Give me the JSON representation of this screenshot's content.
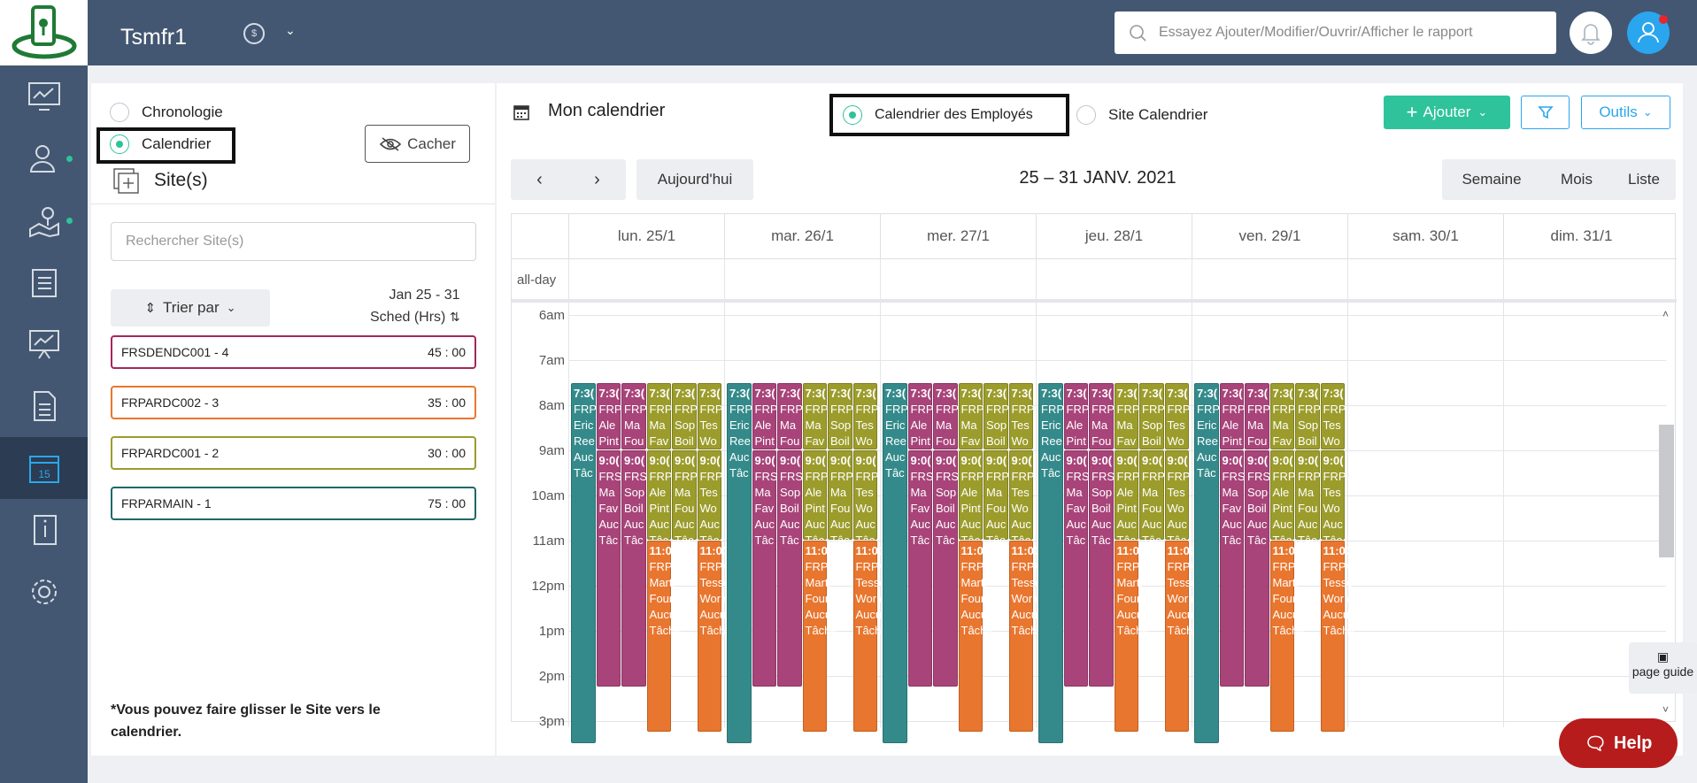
{
  "app": {
    "brand": "Tsmfr1",
    "search_placeholder": "Essayez Ajouter/Modifier/Ouvrir/Afficher le rapport"
  },
  "left": {
    "view_options": [
      "Chronologie",
      "Calendrier"
    ],
    "selected_view": "Calendrier",
    "hide_label": "Cacher",
    "sites_title": "Site(s)",
    "site_search_placeholder": "Rechercher Site(s)",
    "sort_label": "Trier par",
    "week_range": "Jan 25 - 31",
    "sched_label": "Sched (Hrs)",
    "sites": [
      {
        "name": "FRSDENDC001 - 4",
        "hours": "45 : 00",
        "color": "#a3275d"
      },
      {
        "name": "FRPARDC002 - 3",
        "hours": "35 : 00",
        "color": "#e9762e"
      },
      {
        "name": "FRPARDC001 - 2",
        "hours": "30 : 00",
        "color": "#9c9c2c"
      },
      {
        "name": "FRPARMAIN - 1",
        "hours": "75 : 00",
        "color": "#20686a"
      }
    ],
    "drag_note": "*Vous pouvez faire glisser le Site vers le calendrier."
  },
  "calendar": {
    "title": "Mon calendrier",
    "employee_cal": "Calendrier des Employés",
    "site_cal": "Site Calendrier",
    "add_label": "Ajouter",
    "tools_label": "Outils",
    "today_label": "Aujourd'hui",
    "range": "25 – 31 JANV. 2021",
    "views": [
      "Semaine",
      "Mois",
      "Liste"
    ],
    "allday_label": "all-day",
    "days": [
      "lun. 25/1",
      "mar. 26/1",
      "mer. 27/1",
      "jeu. 28/1",
      "ven. 29/1",
      "sam. 30/1",
      "dim. 31/1"
    ],
    "hours": [
      "6am",
      "7am",
      "8am",
      "9am",
      "10am",
      "11am",
      "12pm",
      "1pm",
      "2pm",
      "3pm"
    ],
    "event_columns": [
      {
        "color": "#348a8a",
        "start": 7.5,
        "end": 15.5,
        "lines": [
          "7:3(",
          "FRP",
          "Eric",
          "Ree",
          "Auc",
          "Tâc"
        ]
      },
      {
        "color": "#a8447a",
        "start": 7.5,
        "end": 9.0,
        "lines": [
          "7:3(",
          "FRP",
          "Ale",
          "Pint"
        ],
        "then": {
          "color": "#a8447a",
          "start": 9.0,
          "end": 14.25,
          "lines": [
            "9:0(",
            "FRS",
            "Ma",
            "Fav",
            "Auc",
            "Tâc"
          ]
        }
      },
      {
        "color": "#a8447a",
        "start": 7.5,
        "end": 9.0,
        "lines": [
          "7:3(",
          "FRP",
          "Ma",
          "Fou"
        ],
        "then": {
          "color": "#a8447a",
          "start": 9.0,
          "end": 14.25,
          "lines": [
            "9:0(",
            "FRS",
            "Sop",
            "Boil",
            "Auc",
            "Tâc"
          ]
        }
      },
      {
        "color": "#9c9c2c",
        "start": 7.5,
        "end": 9.0,
        "lines": [
          "7:3(",
          "FRP",
          "Ma",
          "Fav"
        ],
        "then": {
          "color": "#9c9c2c",
          "start": 9.0,
          "end": 11.0,
          "lines": [
            "9:0(",
            "FRP",
            "Ale",
            "Pint",
            "Auc",
            "Tâc"
          ]
        },
        "then2": {
          "color": "#e9762e",
          "start": 11.0,
          "end": 15.25,
          "lines": [
            "11:00",
            "FRPAI",
            "Marti",
            "Fourc",
            "Aucu",
            "Tâche"
          ]
        }
      },
      {
        "color": "#9c9c2c",
        "start": 7.5,
        "end": 9.0,
        "lines": [
          "7:3(",
          "FRP",
          "Sop",
          "Boil"
        ],
        "then": {
          "color": "#9c9c2c",
          "start": 9.0,
          "end": 11.0,
          "lines": [
            "9:0(",
            "FRP",
            "Ma",
            "Fou",
            "Auc",
            "Tâc"
          ]
        }
      },
      {
        "color": "#9c9c2c",
        "start": 7.5,
        "end": 9.0,
        "lines": [
          "7:3(",
          "FRP",
          "Tes",
          "Wo"
        ],
        "then": {
          "color": "#9c9c2c",
          "start": 9.0,
          "end": 11.0,
          "lines": [
            "9:0(",
            "FRP",
            "Tes",
            "Wo",
            "Auc",
            "Tâc"
          ]
        },
        "then2": {
          "color": "#e9762e",
          "start": 11.0,
          "end": 15.25,
          "lines": [
            "11:00",
            "FRPAI",
            "Tesso",
            "Worle",
            "Aucu",
            "Tâche"
          ]
        }
      }
    ]
  },
  "footer": {
    "page_guide": "page guide",
    "help": "Help"
  }
}
